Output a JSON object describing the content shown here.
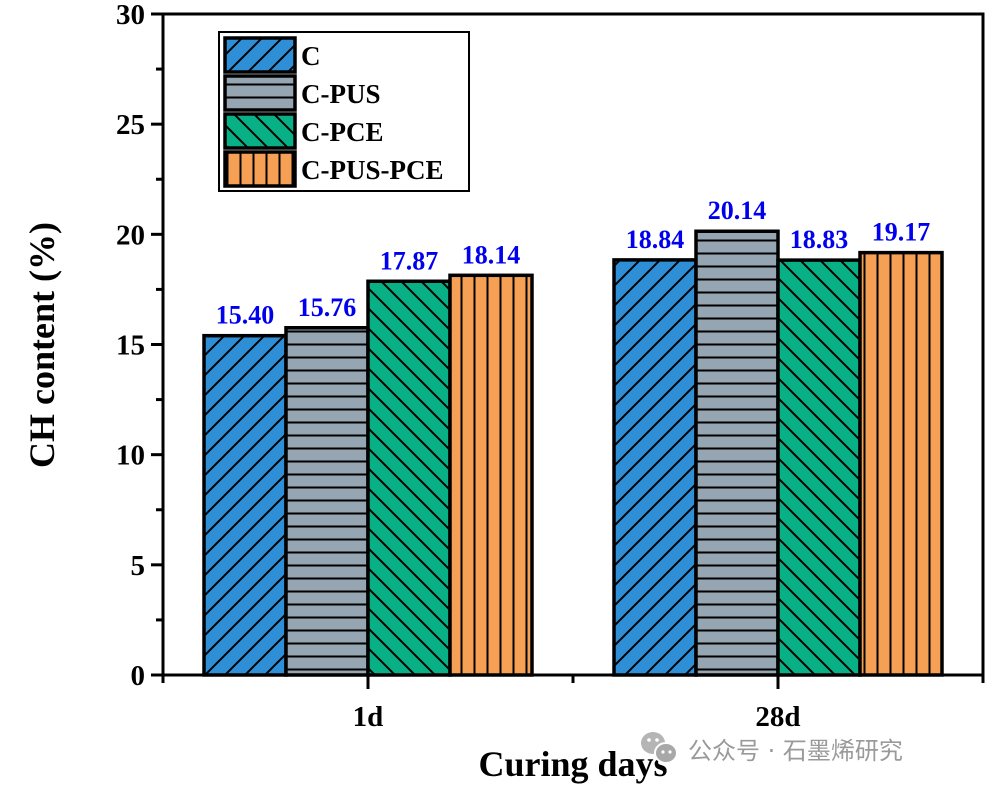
{
  "chart_data": {
    "type": "bar",
    "title": "",
    "xlabel": "Curing days",
    "ylabel": "CH content (%)",
    "ylim": [
      0,
      30
    ],
    "yticks": [
      "0",
      "5",
      "10",
      "15",
      "20",
      "25",
      "30"
    ],
    "ytick_values": [
      0,
      5,
      10,
      15,
      20,
      25,
      30
    ],
    "yminor_step": 2.5,
    "categories": [
      "1d",
      "28d"
    ],
    "grid": false,
    "legend_position": "top-left",
    "series": [
      {
        "name": "C",
        "values": [
          15.4,
          18.84
        ],
        "labels": [
          "15.40",
          "18.84"
        ],
        "color": "#2e8fd6",
        "hatch": "forward-diagonal"
      },
      {
        "name": "C-PUS",
        "values": [
          15.76,
          20.14
        ],
        "labels": [
          "15.76",
          "20.14"
        ],
        "color": "#95a5b1",
        "hatch": "horizontal"
      },
      {
        "name": "C-PCE",
        "values": [
          17.87,
          18.83
        ],
        "labels": [
          "17.87",
          "18.83"
        ],
        "color": "#08b085",
        "hatch": "back-diagonal"
      },
      {
        "name": "C-PUS-PCE",
        "values": [
          18.14,
          19.17
        ],
        "labels": [
          "18.14",
          "19.17"
        ],
        "color": "#f6a056",
        "hatch": "vertical"
      }
    ],
    "data_label_color": "#0000ee"
  },
  "watermark": {
    "text": "公众号 · 石墨烯研究",
    "icon": "wechat-icon"
  }
}
